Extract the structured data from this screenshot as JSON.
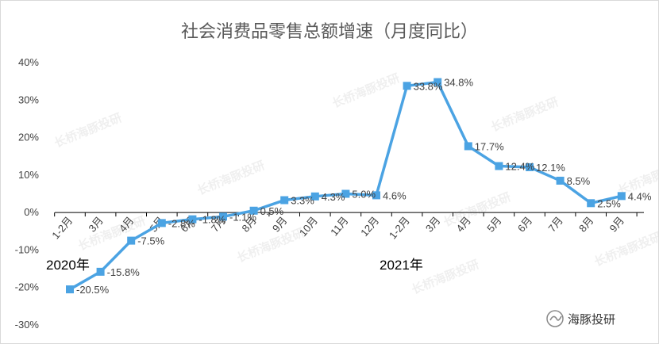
{
  "chart_data": {
    "type": "line",
    "title": "社会消费品零售总额增速（月度同比）",
    "categories": [
      "1-2月",
      "3月",
      "4月",
      "5月",
      "6月",
      "7月",
      "8月",
      "9月",
      "10月",
      "11月",
      "12月",
      "1-2月",
      "3月",
      "4月",
      "5月",
      "6月",
      "7月",
      "8月",
      "9月"
    ],
    "values": [
      -20.5,
      -15.8,
      -7.5,
      -2.8,
      -1.8,
      -1.1,
      0.5,
      3.3,
      4.3,
      5.0,
      4.6,
      33.8,
      34.8,
      17.7,
      12.4,
      12.1,
      8.5,
      2.5,
      4.4
    ],
    "data_labels": [
      "-20.5%",
      "-15.8%",
      "-7.5%",
      "-2.8%",
      "-1.8%",
      "-1.1%",
      "0.5%",
      "3.3%",
      "4.3%",
      "5.0%",
      "4.6%",
      "33.8%",
      "34.8%",
      "17.7%",
      "12.4%",
      "12.1%",
      "8.5%",
      "2.5%",
      "4.4%"
    ],
    "ylim": [
      -30,
      40
    ],
    "y_ticks": [
      "-30%",
      "-20%",
      "-10%",
      "0%",
      "10%",
      "20%",
      "30%",
      "40%"
    ],
    "year_labels": [
      "2020年",
      "2021年"
    ],
    "grid": false,
    "series_color": "#4ba3e3"
  },
  "watermark": "长桥海豚投研",
  "badge": {
    "icon": "wechat-icon",
    "text": "海豚投研"
  }
}
